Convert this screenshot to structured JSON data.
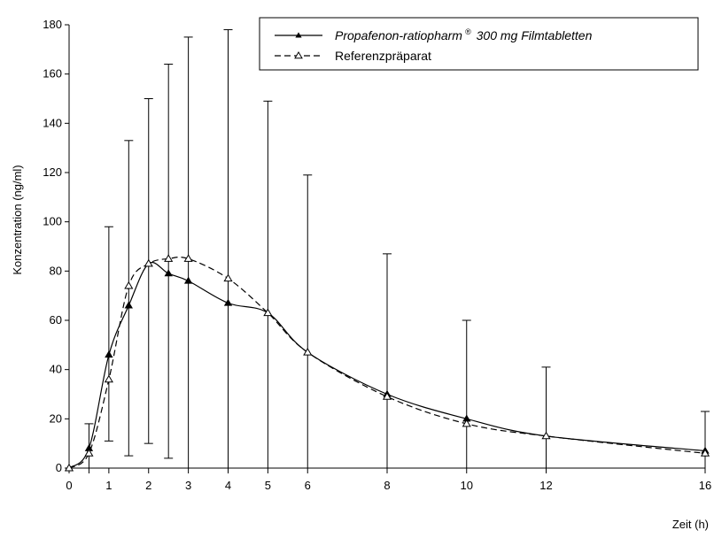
{
  "chart_data": {
    "type": "line",
    "xlabel": "Zeit (h)",
    "ylabel": "Konzentration (ng/ml)",
    "xlim": [
      0,
      16
    ],
    "ylim": [
      0,
      180
    ],
    "xticks": [
      0,
      0.5,
      1,
      2,
      3,
      4,
      5,
      6,
      8,
      10,
      12,
      16
    ],
    "xtick_labels": [
      "0",
      "",
      "1",
      "2",
      "3",
      "4",
      "5",
      "6",
      "8",
      "10",
      "12",
      "16"
    ],
    "yticks": [
      0,
      20,
      40,
      60,
      80,
      100,
      120,
      140,
      160,
      180
    ],
    "grid": false,
    "legend_position": "top-right",
    "series": [
      {
        "name": "Propafenon-ratiopharm",
        "name_suffix": "300 mg Filmtabletten",
        "name_superscript": "®",
        "line_style": "solid",
        "marker": "filled-triangle",
        "x": [
          0,
          0.5,
          1,
          1.5,
          2,
          2.5,
          3,
          4,
          5,
          6,
          8,
          10,
          12,
          16
        ],
        "y": [
          0,
          8,
          46,
          66,
          83,
          79,
          76,
          67,
          63,
          47,
          30,
          20,
          13,
          7
        ],
        "error_upper": [
          0,
          18,
          98,
          133,
          150,
          164,
          175,
          178,
          149,
          119,
          87,
          60,
          41,
          23
        ],
        "error_lower": [
          0,
          0,
          11,
          5,
          10,
          4,
          0,
          0,
          0,
          0,
          0,
          0,
          0,
          0
        ]
      },
      {
        "name": "Referenzpräparat",
        "line_style": "dashed",
        "marker": "open-triangle",
        "x": [
          0,
          0.5,
          1,
          1.5,
          2,
          2.5,
          3,
          4,
          5,
          6,
          8,
          10,
          12,
          16
        ],
        "y": [
          0,
          6,
          36,
          74,
          83,
          85,
          85,
          77,
          63,
          47,
          29,
          18,
          13,
          6
        ]
      }
    ]
  }
}
